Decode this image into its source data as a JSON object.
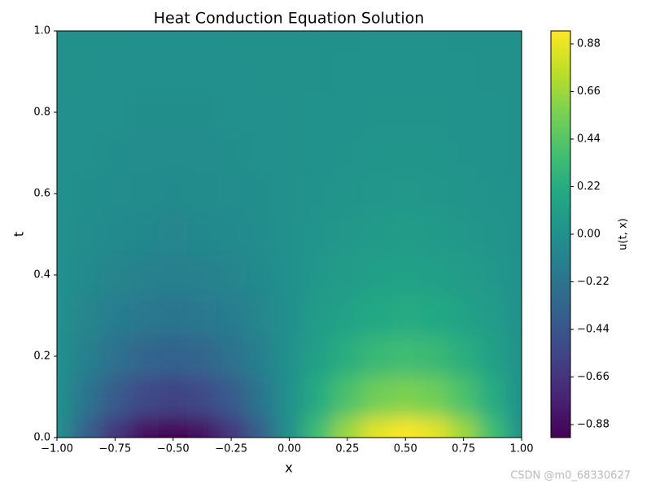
{
  "chart_data": {
    "type": "heatmap",
    "title": "Heat Conduction Equation Solution",
    "x_label": "x",
    "y_label": "t",
    "colorbar_label": "u(t, x)",
    "colormap": "viridis",
    "watermark": "CSDN @m0_68330627",
    "x": [
      -1,
      -0.875,
      -0.75,
      -0.625,
      -0.5,
      -0.375,
      -0.25,
      -0.125,
      0,
      0.125,
      0.25,
      0.375,
      0.5,
      0.625,
      0.75,
      0.875,
      1
    ],
    "y": [
      0,
      0.1,
      0.2,
      0.3,
      0.4,
      0.5,
      0.6,
      0.7,
      0.8,
      0.9,
      1
    ],
    "values": [
      [
        0,
        -0.36,
        -0.66,
        -0.87,
        -0.94,
        -0.87,
        -0.66,
        -0.36,
        0,
        0.36,
        0.66,
        0.87,
        0.94,
        0.87,
        0.66,
        0.36,
        0
      ],
      [
        0,
        -0.22,
        -0.4,
        -0.53,
        -0.57,
        -0.53,
        -0.4,
        -0.22,
        0,
        0.22,
        0.4,
        0.53,
        0.57,
        0.53,
        0.4,
        0.22,
        0
      ],
      [
        0,
        -0.13,
        -0.24,
        -0.32,
        -0.35,
        -0.32,
        -0.24,
        -0.13,
        0,
        0.13,
        0.24,
        0.32,
        0.35,
        0.32,
        0.24,
        0.13,
        0
      ],
      [
        0,
        -0.08,
        -0.15,
        -0.19,
        -0.21,
        -0.19,
        -0.15,
        -0.08,
        0,
        0.08,
        0.15,
        0.19,
        0.21,
        0.19,
        0.15,
        0.08,
        0
      ],
      [
        0,
        -0.05,
        -0.09,
        -0.12,
        -0.13,
        -0.12,
        -0.09,
        -0.05,
        0,
        0.05,
        0.09,
        0.12,
        0.13,
        0.12,
        0.09,
        0.05,
        0
      ],
      [
        0,
        -0.03,
        -0.05,
        -0.07,
        -0.08,
        -0.07,
        -0.05,
        -0.03,
        0,
        0.03,
        0.05,
        0.07,
        0.08,
        0.07,
        0.05,
        0.03,
        0
      ],
      [
        0,
        -0.02,
        -0.03,
        -0.04,
        -0.05,
        -0.04,
        -0.03,
        -0.02,
        0,
        0.02,
        0.03,
        0.04,
        0.05,
        0.04,
        0.03,
        0.02,
        0
      ],
      [
        0,
        -0.01,
        -0.02,
        -0.03,
        -0.03,
        -0.03,
        -0.02,
        -0.01,
        0,
        0.01,
        0.02,
        0.03,
        0.03,
        0.03,
        0.02,
        0.01,
        0
      ],
      [
        0,
        -0.01,
        -0.01,
        -0.02,
        -0.02,
        -0.02,
        -0.01,
        -0.01,
        0,
        0.01,
        0.01,
        0.02,
        0.02,
        0.02,
        0.01,
        0.01,
        0
      ],
      [
        0,
        0,
        -0.01,
        -0.01,
        -0.01,
        -0.01,
        -0.01,
        0,
        0,
        0,
        0.01,
        0.01,
        0.01,
        0.01,
        0.01,
        0,
        0
      ],
      [
        0,
        0,
        0,
        -0.01,
        -0.01,
        -0.01,
        0,
        0,
        0,
        0,
        0,
        0.01,
        0.01,
        0.01,
        0,
        0,
        0
      ]
    ],
    "xlim": [
      -1,
      1
    ],
    "ylim": [
      0,
      1
    ],
    "clim": [
      -0.94,
      0.94
    ],
    "xticks": [
      {
        "value": -1,
        "label": "−1.00"
      },
      {
        "value": -0.75,
        "label": "−0.75"
      },
      {
        "value": -0.5,
        "label": "−0.50"
      },
      {
        "value": -0.25,
        "label": "−0.25"
      },
      {
        "value": 0,
        "label": "0.00"
      },
      0.25,
      {
        "value": 0.5,
        "label": "0.50"
      },
      0.75,
      {
        "value": 1,
        "label": "1.00"
      }
    ],
    "yticks": [
      {
        "value": 0,
        "label": "0.0"
      },
      0.2,
      0.4,
      0.6,
      0.8,
      {
        "value": 1,
        "label": "1.0"
      }
    ],
    "cticks": [
      {
        "value": -0.88,
        "label": "−0.88"
      },
      {
        "value": -0.66,
        "label": "−0.66"
      },
      {
        "value": -0.44,
        "label": "−0.44"
      },
      {
        "value": -0.22,
        "label": "−0.22"
      },
      {
        "value": 0,
        "label": "0.00"
      },
      0.22,
      0.44,
      0.66,
      0.88
    ]
  }
}
